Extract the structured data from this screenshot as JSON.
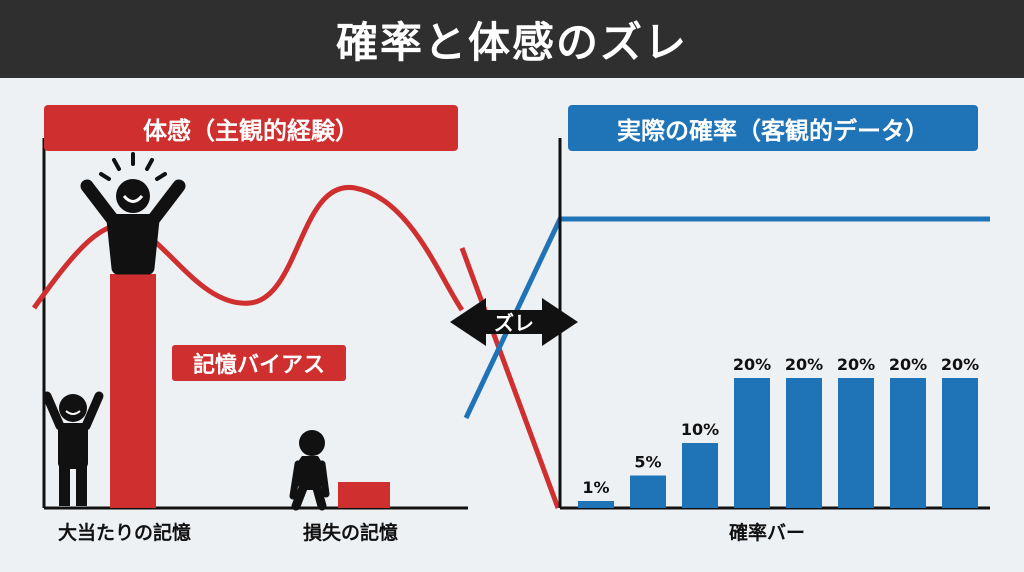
{
  "title": "確率と体感のズレ",
  "left_panel": {
    "header": "体感（主観的経験）",
    "bias_label": "記憶バイアス",
    "x_labels": [
      "大当たりの記憶",
      "損失の記憶"
    ],
    "colors": {
      "accent": "#cf2f2f"
    }
  },
  "divider": {
    "label": "ズレ"
  },
  "right_panel": {
    "header": "実際の確率（客観的データ）",
    "x_label": "確率バー",
    "colors": {
      "accent": "#1f73b7"
    }
  },
  "chart_data": {
    "type": "bar",
    "categories": [
      "",
      "",
      "",
      "",
      "",
      "",
      "",
      ""
    ],
    "values": [
      1,
      5,
      10,
      20,
      20,
      20,
      20,
      20
    ],
    "data_labels": [
      "1%",
      "5%",
      "10%",
      "20%",
      "20%",
      "20%",
      "20%",
      "20%"
    ],
    "xlabel": "確率バー",
    "ylim": [
      0,
      30
    ]
  }
}
